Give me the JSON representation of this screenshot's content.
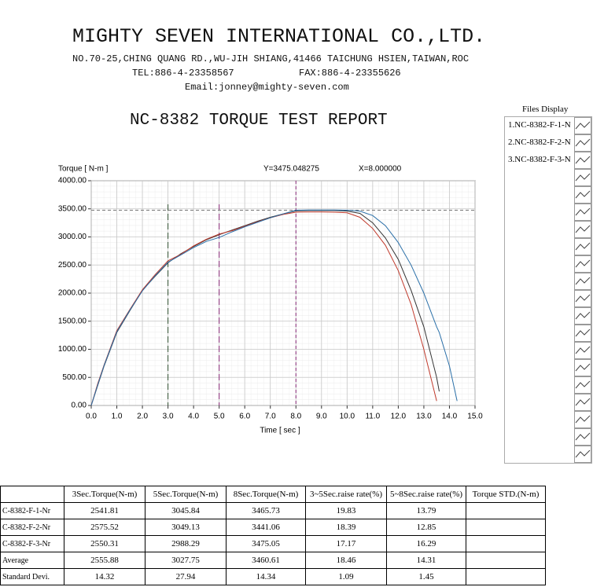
{
  "header": {
    "company": "MIGHTY SEVEN INTERNATIONAL CO.,LTD.",
    "address": "NO.70-25,CHING QUANG RD.,WU-JIH SHIANG,41466 TAICHUNG HSIEN,TAIWAN,ROC",
    "tel": "TEL:886-4-23358567",
    "fax": "FAX:886-4-23355626",
    "email": "Email:jonney@mighty-seven.com",
    "report_title": "NC-8382 TORQUE TEST REPORT"
  },
  "chart_data": {
    "type": "line",
    "y_label": "Torque [ N-m ]",
    "x_label": "Time [ sec ]",
    "cursor": {
      "x": 8,
      "y": 3475.048275,
      "x_label": "X=8.000000",
      "y_label": "Y=3475.048275",
      "color": "#8a2a7a"
    },
    "markers": [
      {
        "x": 3,
        "color": "#2f4f2f"
      },
      {
        "x": 5,
        "color": "#8a2a7a"
      }
    ],
    "xlim": [
      0,
      15
    ],
    "ylim": [
      0,
      4000
    ],
    "xticks": [
      {
        "value": 0,
        "label": "0.0"
      },
      {
        "value": 1,
        "label": "1.0"
      },
      {
        "value": 2,
        "label": "2.0"
      },
      {
        "value": 3,
        "label": "3.0"
      },
      {
        "value": 4,
        "label": "4.0"
      },
      {
        "value": 5,
        "label": "5.0"
      },
      {
        "value": 6,
        "label": "6.0"
      },
      {
        "value": 7,
        "label": "7.0"
      },
      {
        "value": 8,
        "label": "8.0"
      },
      {
        "value": 9,
        "label": "9.0"
      },
      {
        "value": 10,
        "label": "10.0"
      },
      {
        "value": 11,
        "label": "11.0"
      },
      {
        "value": 12,
        "label": "12.0"
      },
      {
        "value": 13,
        "label": "13.0"
      },
      {
        "value": 14,
        "label": "14.0"
      },
      {
        "value": 15,
        "label": "15.0"
      }
    ],
    "yticks": [
      {
        "value": 0,
        "label": "0.00"
      },
      {
        "value": 500,
        "label": "500.00"
      },
      {
        "value": 1000,
        "label": "1000.00"
      },
      {
        "value": 1500,
        "label": "1500.00"
      },
      {
        "value": 2000,
        "label": "2000.00"
      },
      {
        "value": 2500,
        "label": "2500.00"
      },
      {
        "value": 3000,
        "label": "3000.00"
      },
      {
        "value": 3500,
        "label": "3500.00"
      },
      {
        "value": 4000,
        "label": "4000.00"
      }
    ],
    "x": [
      0,
      0.25,
      0.5,
      1,
      1.5,
      2,
      2.5,
      3,
      3.5,
      4,
      4.5,
      5,
      5.5,
      6,
      6.5,
      7,
      7.5,
      8,
      8.5,
      9,
      9.5,
      10,
      10.5,
      11,
      11.5,
      12,
      12.5,
      13,
      13.5,
      13.6,
      14,
      14.3
    ],
    "series": [
      {
        "name": "1.NC-8382-F-1-N",
        "color": "#333333",
        "values": [
          0,
          350,
          700,
          1300,
          1680,
          2050,
          2300,
          2540,
          2700,
          2830,
          2950,
          3040,
          3120,
          3200,
          3280,
          3350,
          3410,
          3465,
          3470,
          3470,
          3470,
          3460,
          3420,
          3250,
          2980,
          2600,
          2050,
          1400,
          500,
          250,
          null,
          null
        ]
      },
      {
        "name": "2.NC-8382-F-2-N",
        "color": "#c0392b",
        "values": [
          0,
          380,
          720,
          1330,
          1700,
          2060,
          2330,
          2575,
          2690,
          2840,
          2960,
          3050,
          3110,
          3190,
          3270,
          3340,
          3400,
          3440,
          3445,
          3445,
          3440,
          3430,
          3350,
          3150,
          2850,
          2400,
          1800,
          1000,
          80,
          null,
          null,
          null
        ]
      },
      {
        "name": "3.NC-8382-F-3-N",
        "color": "#2a6fa8",
        "values": [
          0,
          360,
          710,
          1310,
          1690,
          2040,
          2310,
          2550,
          2680,
          2810,
          2920,
          2990,
          3090,
          3180,
          3260,
          3340,
          3410,
          3475,
          3478,
          3478,
          3478,
          3475,
          3460,
          3380,
          3200,
          2900,
          2500,
          2000,
          1400,
          1300,
          700,
          80
        ]
      }
    ]
  },
  "files_display": {
    "title": "Files Display"
  },
  "table": {
    "header": [
      "3Sec.Torque(N-m)",
      "5Sec.Torque(N-m)",
      "8Sec.Torque(N-m)",
      "3~5Sec.raise rate(%)",
      "5~8Sec.raise rate(%)",
      "Torque STD.(N-m)"
    ],
    "rows": [
      [
        "C-8382-F-1-Nr",
        "2541.81",
        "3045.84",
        "3465.73",
        "19.83",
        "13.79"
      ],
      [
        "C-8382-F-2-Nr",
        "2575.52",
        "3049.13",
        "3441.06",
        "18.39",
        "12.85"
      ],
      [
        "C-8382-F-3-Nr",
        "2550.31",
        "2988.29",
        "3475.05",
        "17.17",
        "16.29"
      ],
      [
        "Average",
        "2555.88",
        "3027.75",
        "3460.61",
        "18.46",
        "14.31"
      ],
      [
        "Standard Devi.",
        "14.32",
        "27.94",
        "14.34",
        "1.09",
        "1.45"
      ]
    ]
  }
}
